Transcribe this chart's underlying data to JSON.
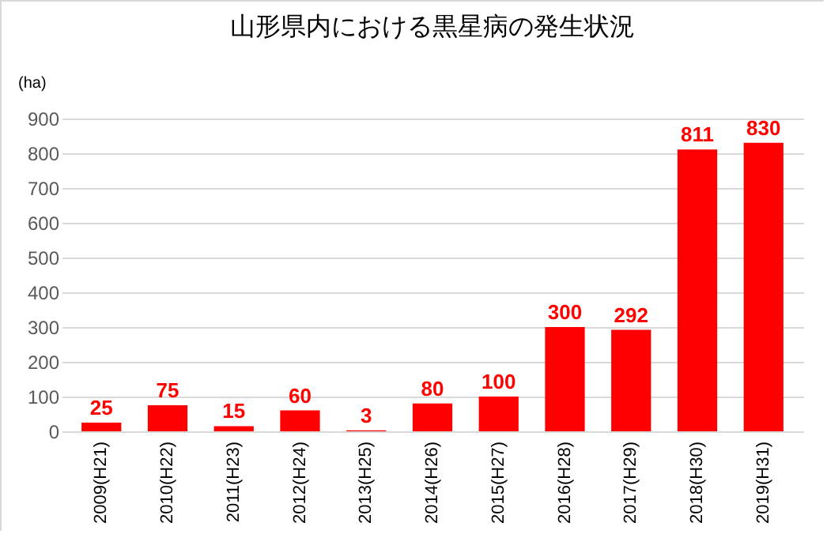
{
  "chart_data": {
    "type": "bar",
    "title": "山形県内における黒星病の発生状況",
    "ylabel": "(ha)",
    "categories": [
      "2009(H21)",
      "2010(H22)",
      "2011(H23)",
      "2012(H24)",
      "2013(H25)",
      "2014(H26)",
      "2015(H27)",
      "2016(H28)",
      "2017(H29)",
      "2018(H30)",
      "2019(H31)"
    ],
    "values": [
      25,
      75,
      15,
      60,
      3,
      80,
      100,
      300,
      292,
      811,
      830
    ],
    "color": "#ff0000",
    "ylim": [
      0,
      900
    ],
    "yticks": [
      0,
      100,
      200,
      300,
      400,
      500,
      600,
      700,
      800,
      900
    ],
    "grid": "y",
    "data_labels": true
  }
}
